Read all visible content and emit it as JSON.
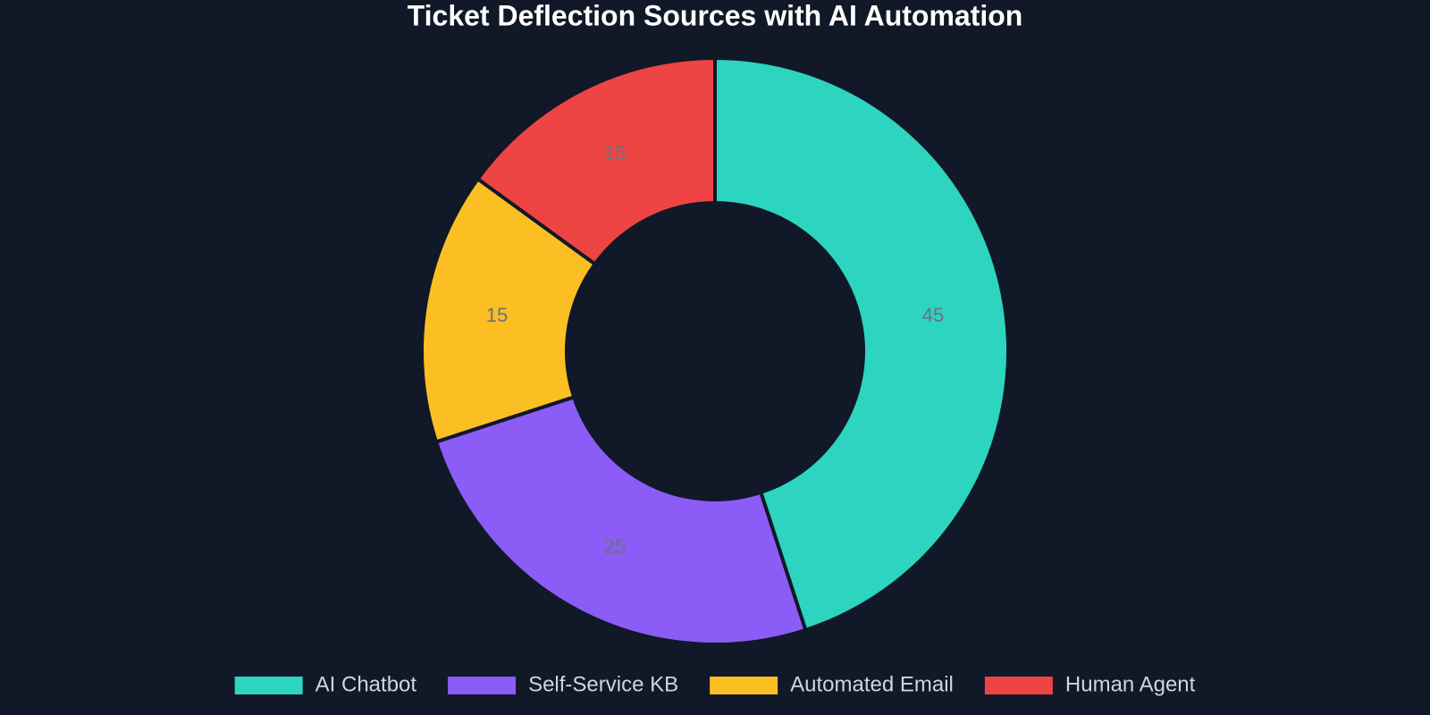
{
  "chart_data": {
    "type": "donut",
    "title": "Ticket Deflection Sources with AI Automation",
    "categories": [
      "AI Chatbot",
      "Self-Service KB",
      "Automated Email",
      "Human Agent"
    ],
    "values": [
      45,
      25,
      15,
      15
    ],
    "colors": [
      "#2dd4bf",
      "#8b5cf6",
      "#fbbf24",
      "#ef4444"
    ]
  }
}
